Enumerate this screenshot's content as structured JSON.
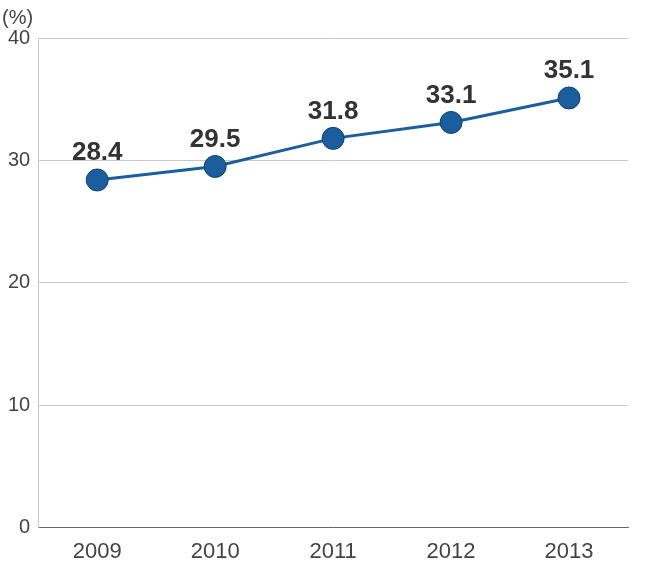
{
  "chart_data": {
    "type": "line",
    "y_label": "(%)",
    "categories": [
      "2009",
      "2010",
      "2011",
      "2012",
      "2013"
    ],
    "values": [
      28.4,
      29.5,
      31.8,
      33.1,
      35.1
    ],
    "color": "#1b5e9e",
    "marker": "circle",
    "ylim": [
      0,
      40
    ],
    "yticks": [
      0,
      10,
      20,
      30,
      40
    ],
    "grid": true,
    "data_labels": true
  }
}
